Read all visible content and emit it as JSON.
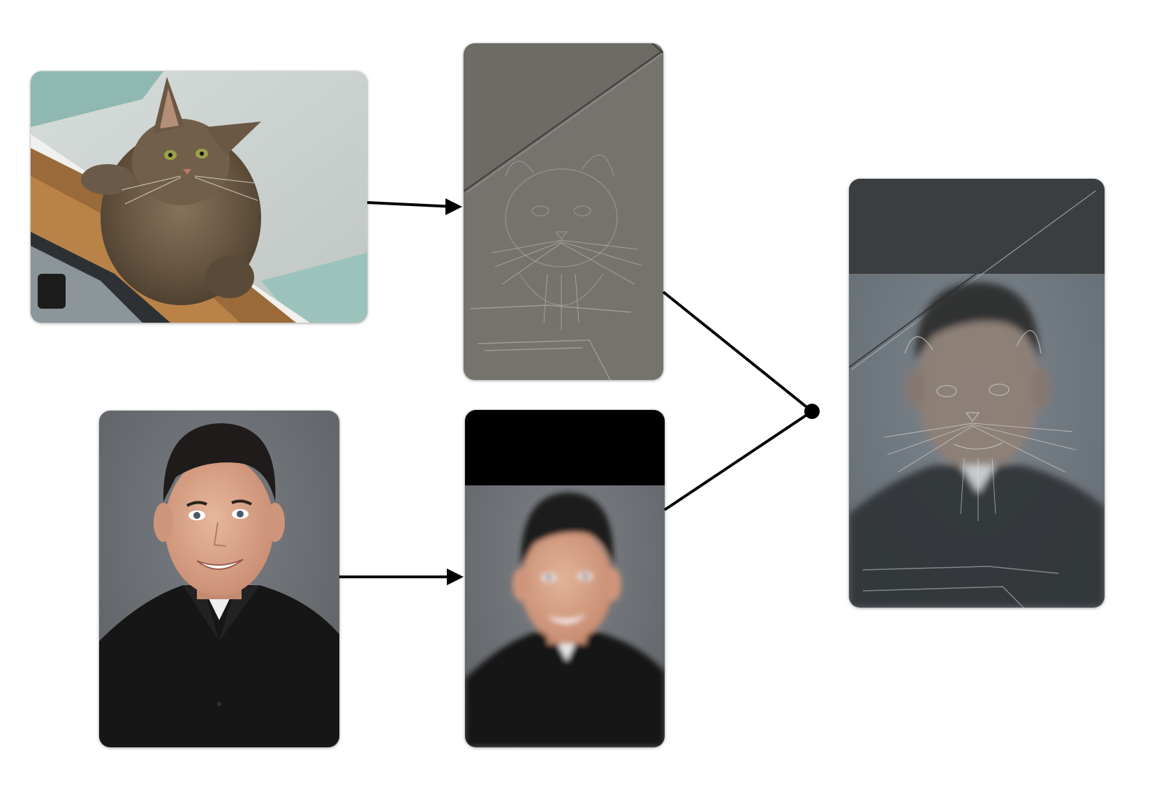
{
  "images": {
    "cat_photo": {
      "icon": "cat-photo-image"
    },
    "cat_highpass": {
      "icon": "cat-high-frequency-image"
    },
    "person_photo": {
      "icon": "person-photo-image"
    },
    "person_lowpass": {
      "icon": "person-low-frequency-image"
    },
    "hybrid": {
      "icon": "hybrid-image"
    }
  },
  "colors": {
    "background": "#ffffff",
    "connector": "#000000",
    "cat_wall": "#c9cfcc",
    "cat_teal": "#8fb8b3",
    "cat_fur": "#6b5a47",
    "cat_wood": "#9a6a3a",
    "highpass_gray": "#6d6b66",
    "portrait_bg": "#6e7176",
    "shirt": "#161616",
    "skin": "#d9a58a",
    "hair": "#1e1b1a",
    "hybrid_bg": "#707880",
    "hybrid_band": "#3b3e40"
  }
}
